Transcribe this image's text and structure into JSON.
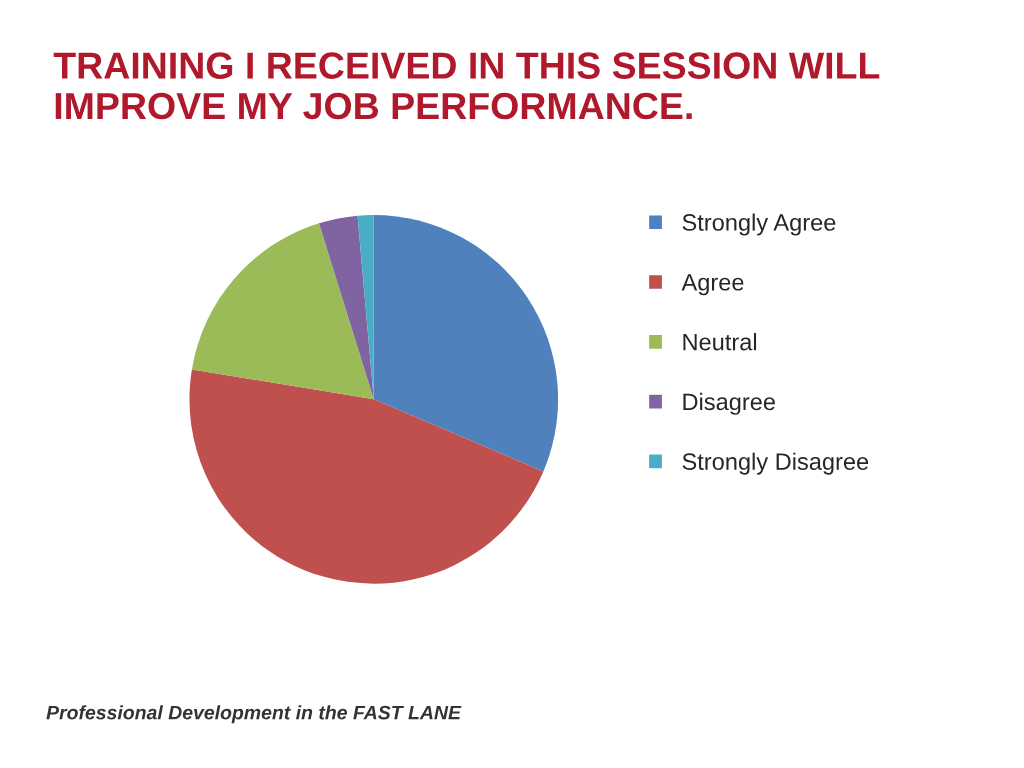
{
  "chart_data": {
    "type": "pie",
    "title": "TRAINING I RECEIVED IN THIS SESSION WILL\nIMPROVE MY JOB PERFORMANCE.",
    "categories": [
      "Strongly Agree",
      "Agree",
      "Neutral",
      "Disagree",
      "Strongly Disagree"
    ],
    "values": [
      31.4,
      46.2,
      17.6,
      3.4,
      1.4
    ],
    "colors": [
      "#4f81bd",
      "#c0504d",
      "#9bbb59",
      "#8064a2",
      "#4bacc6"
    ],
    "legend": "right",
    "annotations": [
      "Professional Development in the FAST LANE"
    ]
  }
}
